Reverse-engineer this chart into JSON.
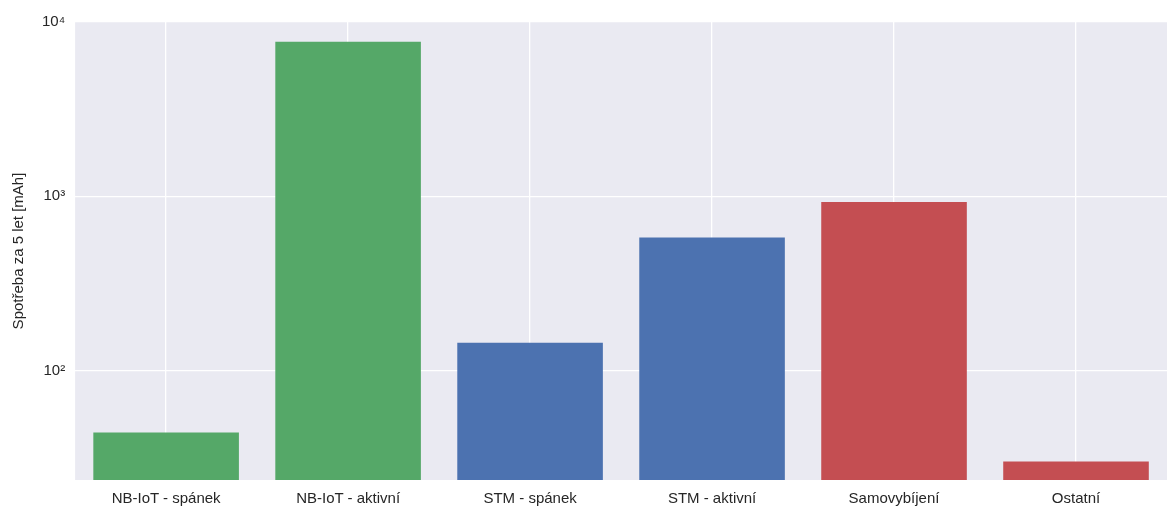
{
  "chart_data": {
    "type": "bar",
    "ylabel": "Spotřeba za 5 let [mAh]",
    "categories": [
      "NB-IoT - spánek",
      "NB-IoT - aktivní",
      "STM - spánek",
      "STM - aktivní",
      "Samovybíjení",
      "Ostatní"
    ],
    "values": [
      44,
      7700,
      144,
      580,
      925,
      30
    ],
    "colors": [
      "#55a868",
      "#55a868",
      "#4c72b0",
      "#4c72b0",
      "#c44e52",
      "#c44e52"
    ],
    "log": true,
    "ylim": [
      23.5,
      10000
    ],
    "yticks": [
      {
        "value": 100,
        "label": "10²"
      },
      {
        "value": 1000,
        "label": "10³"
      },
      {
        "value": 10000,
        "label": "10⁴"
      }
    ],
    "grid": true,
    "legend": false
  }
}
